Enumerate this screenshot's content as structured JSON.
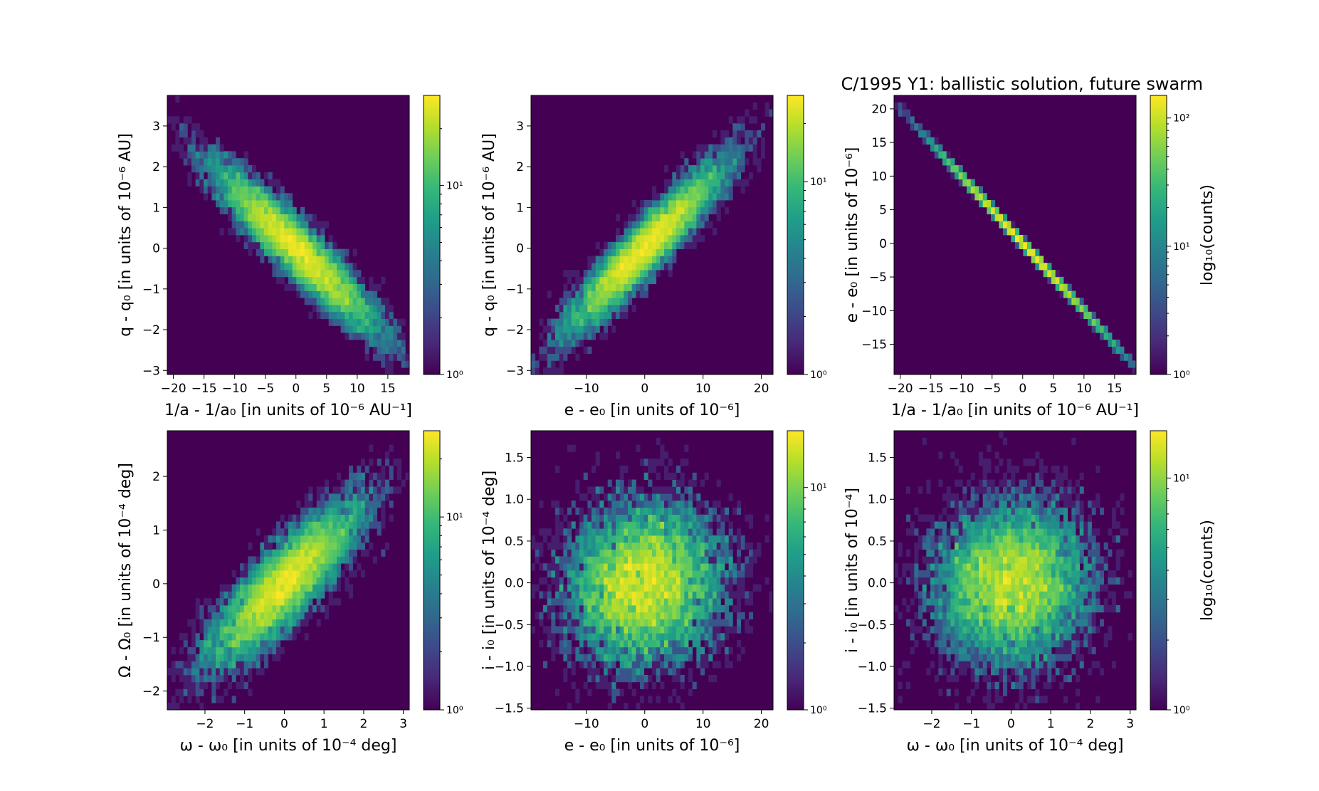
{
  "figure": {
    "title": "C/1995 Y1:  ballistic solution, future swarm"
  },
  "colors": {
    "background": "#440154",
    "colormap": [
      "#440154",
      "#482878",
      "#3e4989",
      "#31688e",
      "#26828e",
      "#1f9e89",
      "#35b779",
      "#6ece58",
      "#b5de2b",
      "#fde725"
    ]
  },
  "chart_data": [
    {
      "id": "p1",
      "type": "heatmap",
      "title": "",
      "xlabel": "1/a - 1/a₀ [in units of 10⁻⁶ AU⁻¹]",
      "ylabel": "q - q₀ [in units of 10⁻⁶ AU]",
      "xlim": [
        -21,
        18.5
      ],
      "ylim": [
        -3.1,
        3.75
      ],
      "xticks": [
        -20,
        -15,
        -10,
        -5,
        0,
        5,
        10,
        15
      ],
      "yticks": [
        -3,
        -2,
        -1,
        0,
        1,
        2,
        3
      ],
      "distribution": {
        "center": [
          0,
          0
        ],
        "sx": 6.6,
        "sy": 1.0,
        "rho": -0.93
      },
      "colorbar": {
        "scale": "log",
        "range": [
          1,
          30
        ],
        "ticks": [
          {
            "value": 1,
            "label": "10⁰"
          },
          {
            "value": 10,
            "label": "10¹"
          }
        ],
        "label": ""
      }
    },
    {
      "id": "p2",
      "type": "heatmap",
      "title": "",
      "xlabel": "e - e₀ [in units of 10⁻⁶]",
      "ylabel": "q - q₀ [in units of 10⁻⁶ AU]",
      "xlim": [
        -19.5,
        22
      ],
      "ylim": [
        -3.1,
        3.75
      ],
      "xticks": [
        -10,
        0,
        10,
        20
      ],
      "yticks": [
        -3,
        -2,
        -1,
        0,
        1,
        2,
        3
      ],
      "distribution": {
        "center": [
          0,
          0
        ],
        "sx": 6.6,
        "sy": 1.0,
        "rho": 0.93
      },
      "colorbar": {
        "scale": "log",
        "range": [
          1,
          28
        ],
        "ticks": [
          {
            "value": 1,
            "label": "10⁰"
          },
          {
            "value": 10,
            "label": "10¹"
          }
        ],
        "label": ""
      }
    },
    {
      "id": "p3",
      "type": "heatmap",
      "title": "",
      "xlabel": "1/a - 1/a₀ [in units of 10⁻⁶ AU⁻¹]",
      "ylabel": "e - e₀ [in units of 10⁻⁶]",
      "xlim": [
        -21,
        18.5
      ],
      "ylim": [
        -19.5,
        22
      ],
      "xticks": [
        -20,
        -15,
        -10,
        -5,
        0,
        5,
        10,
        15
      ],
      "yticks": [
        -15,
        -10,
        -5,
        0,
        5,
        10,
        15,
        20
      ],
      "distribution": {
        "center": [
          0,
          0
        ],
        "sx": 6.6,
        "sy": 6.6,
        "rho": -0.9995
      },
      "colorbar": {
        "scale": "log",
        "range": [
          1,
          150
        ],
        "ticks": [
          {
            "value": 1,
            "label": "10⁰"
          },
          {
            "value": 10,
            "label": "10¹"
          },
          {
            "value": 100,
            "label": "10²"
          }
        ],
        "label": "log₁₀(counts)"
      }
    },
    {
      "id": "p4",
      "type": "heatmap",
      "title": "",
      "xlabel": "ω - ω₀ [in units of 10⁻⁴ deg]",
      "ylabel": "Ω - Ω₀ [in units of 10⁻⁴ deg]",
      "xlim": [
        -2.95,
        3.15
      ],
      "ylim": [
        -2.35,
        2.85
      ],
      "xticks": [
        -2,
        -1,
        0,
        1,
        2,
        3
      ],
      "yticks": [
        -2,
        -1,
        0,
        1,
        2
      ],
      "distribution": {
        "center": [
          0,
          0
        ],
        "sx": 0.95,
        "sy": 0.75,
        "rho": 0.85
      },
      "colorbar": {
        "scale": "log",
        "range": [
          1,
          28
        ],
        "ticks": [
          {
            "value": 1,
            "label": "10⁰"
          },
          {
            "value": 10,
            "label": "10¹"
          }
        ],
        "label": ""
      }
    },
    {
      "id": "p5",
      "type": "heatmap",
      "title": "",
      "xlabel": "e - e₀ [in units of 10⁻⁶]",
      "ylabel": "i - i₀ [in units of 10⁻⁴ deg]",
      "xlim": [
        -19.5,
        22
      ],
      "ylim": [
        -1.52,
        1.82
      ],
      "xticks": [
        -10,
        0,
        10,
        20
      ],
      "yticks": [
        -1.5,
        -1.0,
        -0.5,
        0.0,
        0.5,
        1.0,
        1.5
      ],
      "yticklabels": [
        "−1.5",
        "−1.0",
        "−0.5",
        "0.0",
        "0.5",
        "1.0",
        "1.5"
      ],
      "distribution": {
        "center": [
          0,
          0
        ],
        "sx": 6.6,
        "sy": 0.48,
        "rho": 0.05
      },
      "colorbar": {
        "scale": "log",
        "range": [
          1,
          18
        ],
        "ticks": [
          {
            "value": 1,
            "label": "10⁰"
          },
          {
            "value": 10,
            "label": "10¹"
          }
        ],
        "label": ""
      }
    },
    {
      "id": "p6",
      "type": "heatmap",
      "title": "",
      "xlabel": "ω - ω₀ [in units of 10⁻⁴ deg]",
      "ylabel": "i - i₀ [in units of 10⁻⁴]",
      "xlim": [
        -2.95,
        3.15
      ],
      "ylim": [
        -1.52,
        1.82
      ],
      "xticks": [
        -2,
        -1,
        0,
        1,
        2,
        3
      ],
      "yticks": [
        -1.5,
        -1.0,
        -0.5,
        0.0,
        0.5,
        1.0,
        1.5
      ],
      "yticklabels": [
        "−1.5",
        "−1.0",
        "−0.5",
        "0.0",
        "0.5",
        "1.0",
        "1.5"
      ],
      "distribution": {
        "center": [
          0,
          0
        ],
        "sx": 0.95,
        "sy": 0.48,
        "rho": 0.05
      },
      "colorbar": {
        "scale": "log",
        "range": [
          1,
          16
        ],
        "ticks": [
          {
            "value": 1,
            "label": "10⁰"
          },
          {
            "value": 10,
            "label": "10¹"
          }
        ],
        "label": "log₁₀(counts)"
      }
    }
  ]
}
